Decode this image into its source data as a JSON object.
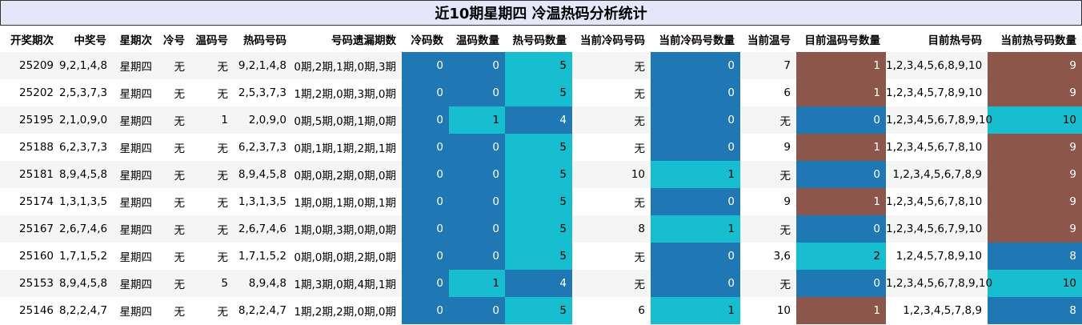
{
  "title": "近10期星期四 冷温热码分析统计",
  "colors": {
    "cold": "#1f77b4",
    "warm": "#17becf",
    "hot": "#8c564b",
    "header_bg": "#e6e6fa",
    "row_alt": "#f5f5f5"
  },
  "columns": [
    "开奖期次",
    "中奖号",
    "星期次",
    "冷号",
    "温码号",
    "热码号码",
    "号码遗漏期数",
    "冷码数",
    "温码数量",
    "热号码数量",
    "当前冷码号码",
    "当前冷码号数量",
    "当前温号",
    "目前温码号数量",
    "目前热号码",
    "当前热号码数量"
  ],
  "rows": [
    {
      "cells": [
        "25209",
        "9,2,1,4,8",
        "星期四",
        "无",
        "无",
        "9,2,1,4,8",
        "0期,2期,1期,0期,3期",
        "0",
        "0",
        "5",
        "无",
        "0",
        "7",
        "1",
        "1,2,3,4,5,6,8,9,10",
        "9"
      ],
      "colors": [
        "",
        "",
        "",
        "",
        "",
        "",
        "",
        "cold",
        "cold",
        "warm",
        "",
        "cold",
        "",
        "hot",
        "",
        "hot"
      ]
    },
    {
      "cells": [
        "25202",
        "2,5,3,7,3",
        "星期四",
        "无",
        "无",
        "2,5,3,7,3",
        "1期,2期,0期,3期,0期",
        "0",
        "0",
        "5",
        "无",
        "0",
        "6",
        "1",
        "1,2,3,4,5,7,8,9,10",
        "9"
      ],
      "colors": [
        "",
        "",
        "",
        "",
        "",
        "",
        "",
        "cold",
        "cold",
        "warm",
        "",
        "cold",
        "",
        "hot",
        "",
        "hot"
      ]
    },
    {
      "cells": [
        "25195",
        "2,1,0,9,0",
        "星期四",
        "无",
        "1",
        "2,0,9,0",
        "0期,5期,0期,1期,0期",
        "0",
        "1",
        "4",
        "无",
        "0",
        "无",
        "0",
        "1,2,3,4,5,6,7,8,9,10",
        "10"
      ],
      "colors": [
        "",
        "",
        "",
        "",
        "",
        "",
        "",
        "cold",
        "warm",
        "cold",
        "",
        "cold",
        "",
        "cold",
        "",
        "warm"
      ]
    },
    {
      "cells": [
        "25188",
        "6,2,3,7,3",
        "星期四",
        "无",
        "无",
        "6,2,3,7,3",
        "0期,1期,1期,2期,1期",
        "0",
        "0",
        "5",
        "无",
        "0",
        "9",
        "1",
        "1,2,3,4,5,6,7,8,10",
        "9"
      ],
      "colors": [
        "",
        "",
        "",
        "",
        "",
        "",
        "",
        "cold",
        "cold",
        "warm",
        "",
        "cold",
        "",
        "hot",
        "",
        "hot"
      ]
    },
    {
      "cells": [
        "25181",
        "8,9,4,5,8",
        "星期四",
        "无",
        "无",
        "8,9,4,5,8",
        "0期,0期,2期,0期,0期",
        "0",
        "0",
        "5",
        "10",
        "1",
        "无",
        "0",
        "1,2,3,4,5,6,7,8,9",
        "9"
      ],
      "colors": [
        "",
        "",
        "",
        "",
        "",
        "",
        "",
        "cold",
        "cold",
        "warm",
        "",
        "warm",
        "",
        "cold",
        "",
        "hot"
      ]
    },
    {
      "cells": [
        "25174",
        "1,3,1,3,5",
        "星期四",
        "无",
        "无",
        "1,3,1,3,5",
        "1期,0期,1期,0期,1期",
        "0",
        "0",
        "5",
        "无",
        "0",
        "9",
        "1",
        "1,2,3,4,5,6,7,8,10",
        "9"
      ],
      "colors": [
        "",
        "",
        "",
        "",
        "",
        "",
        "",
        "cold",
        "cold",
        "warm",
        "",
        "cold",
        "",
        "hot",
        "",
        "hot"
      ]
    },
    {
      "cells": [
        "25167",
        "2,6,7,4,6",
        "星期四",
        "无",
        "无",
        "2,6,7,4,6",
        "1期,0期,3期,0期,0期",
        "0",
        "0",
        "5",
        "8",
        "1",
        "无",
        "0",
        "1,2,3,4,5,6,7,9,10",
        "9"
      ],
      "colors": [
        "",
        "",
        "",
        "",
        "",
        "",
        "",
        "cold",
        "cold",
        "warm",
        "",
        "warm",
        "",
        "cold",
        "",
        "hot"
      ]
    },
    {
      "cells": [
        "25160",
        "1,7,1,5,2",
        "星期四",
        "无",
        "无",
        "1,7,1,5,2",
        "0期,0期,0期,2期,0期",
        "0",
        "0",
        "5",
        "无",
        "0",
        "3,6",
        "2",
        "1,2,4,5,7,8,9,10",
        "8"
      ],
      "colors": [
        "",
        "",
        "",
        "",
        "",
        "",
        "",
        "cold",
        "cold",
        "warm",
        "",
        "cold",
        "",
        "warm",
        "",
        "cold"
      ]
    },
    {
      "cells": [
        "25153",
        "8,9,4,5,8",
        "星期四",
        "无",
        "5",
        "8,9,4,8",
        "1期,3期,0期,4期,1期",
        "0",
        "1",
        "4",
        "无",
        "0",
        "无",
        "0",
        "1,2,3,4,5,6,7,8,9,10",
        "10"
      ],
      "colors": [
        "",
        "",
        "",
        "",
        "",
        "",
        "",
        "cold",
        "warm",
        "cold",
        "",
        "cold",
        "",
        "cold",
        "",
        "warm"
      ]
    },
    {
      "cells": [
        "25146",
        "8,2,2,4,7",
        "星期四",
        "无",
        "无",
        "8,2,2,4,7",
        "1期,2期,2期,0期,0期",
        "0",
        "0",
        "5",
        "6",
        "1",
        "10",
        "1",
        "1,2,3,4,5,7,8,9",
        "8"
      ],
      "colors": [
        "",
        "",
        "",
        "",
        "",
        "",
        "",
        "cold",
        "cold",
        "warm",
        "",
        "warm",
        "",
        "hot",
        "",
        "cold"
      ]
    }
  ]
}
